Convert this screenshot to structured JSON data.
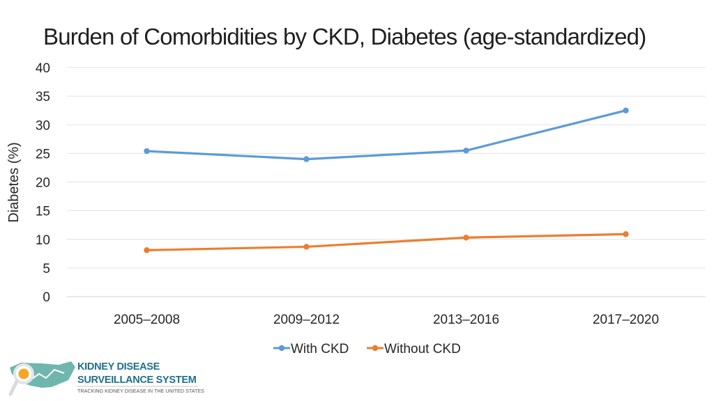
{
  "chart_data": {
    "type": "line",
    "title": "Burden of Comorbidities by CKD, Diabetes (age-standardized)",
    "xlabel": "",
    "ylabel": "Diabetes (%)",
    "categories": [
      "2005–2008",
      "2009–2012",
      "2013–2016",
      "2017–2020"
    ],
    "ylim": [
      0,
      40
    ],
    "yticks": [
      0,
      5,
      10,
      15,
      20,
      25,
      30,
      35,
      40
    ],
    "grid": true,
    "legend_position": "bottom",
    "series": [
      {
        "name": "With CKD",
        "color": "#5b9bd5",
        "values": [
          25.4,
          24.0,
          25.5,
          32.5
        ]
      },
      {
        "name": "Without CKD",
        "color": "#ed7d31",
        "values": [
          8.1,
          8.7,
          10.3,
          10.9
        ]
      }
    ]
  },
  "logo": {
    "line1": "KIDNEY DISEASE",
    "line2": "SURVEILLANCE SYSTEM",
    "tagline": "TRACKING KIDNEY DISEASE IN THE UNITED STATES",
    "colors": {
      "primary": "#1d6f8c",
      "map": "#6fb7ae",
      "accent": "#f5a623"
    }
  }
}
